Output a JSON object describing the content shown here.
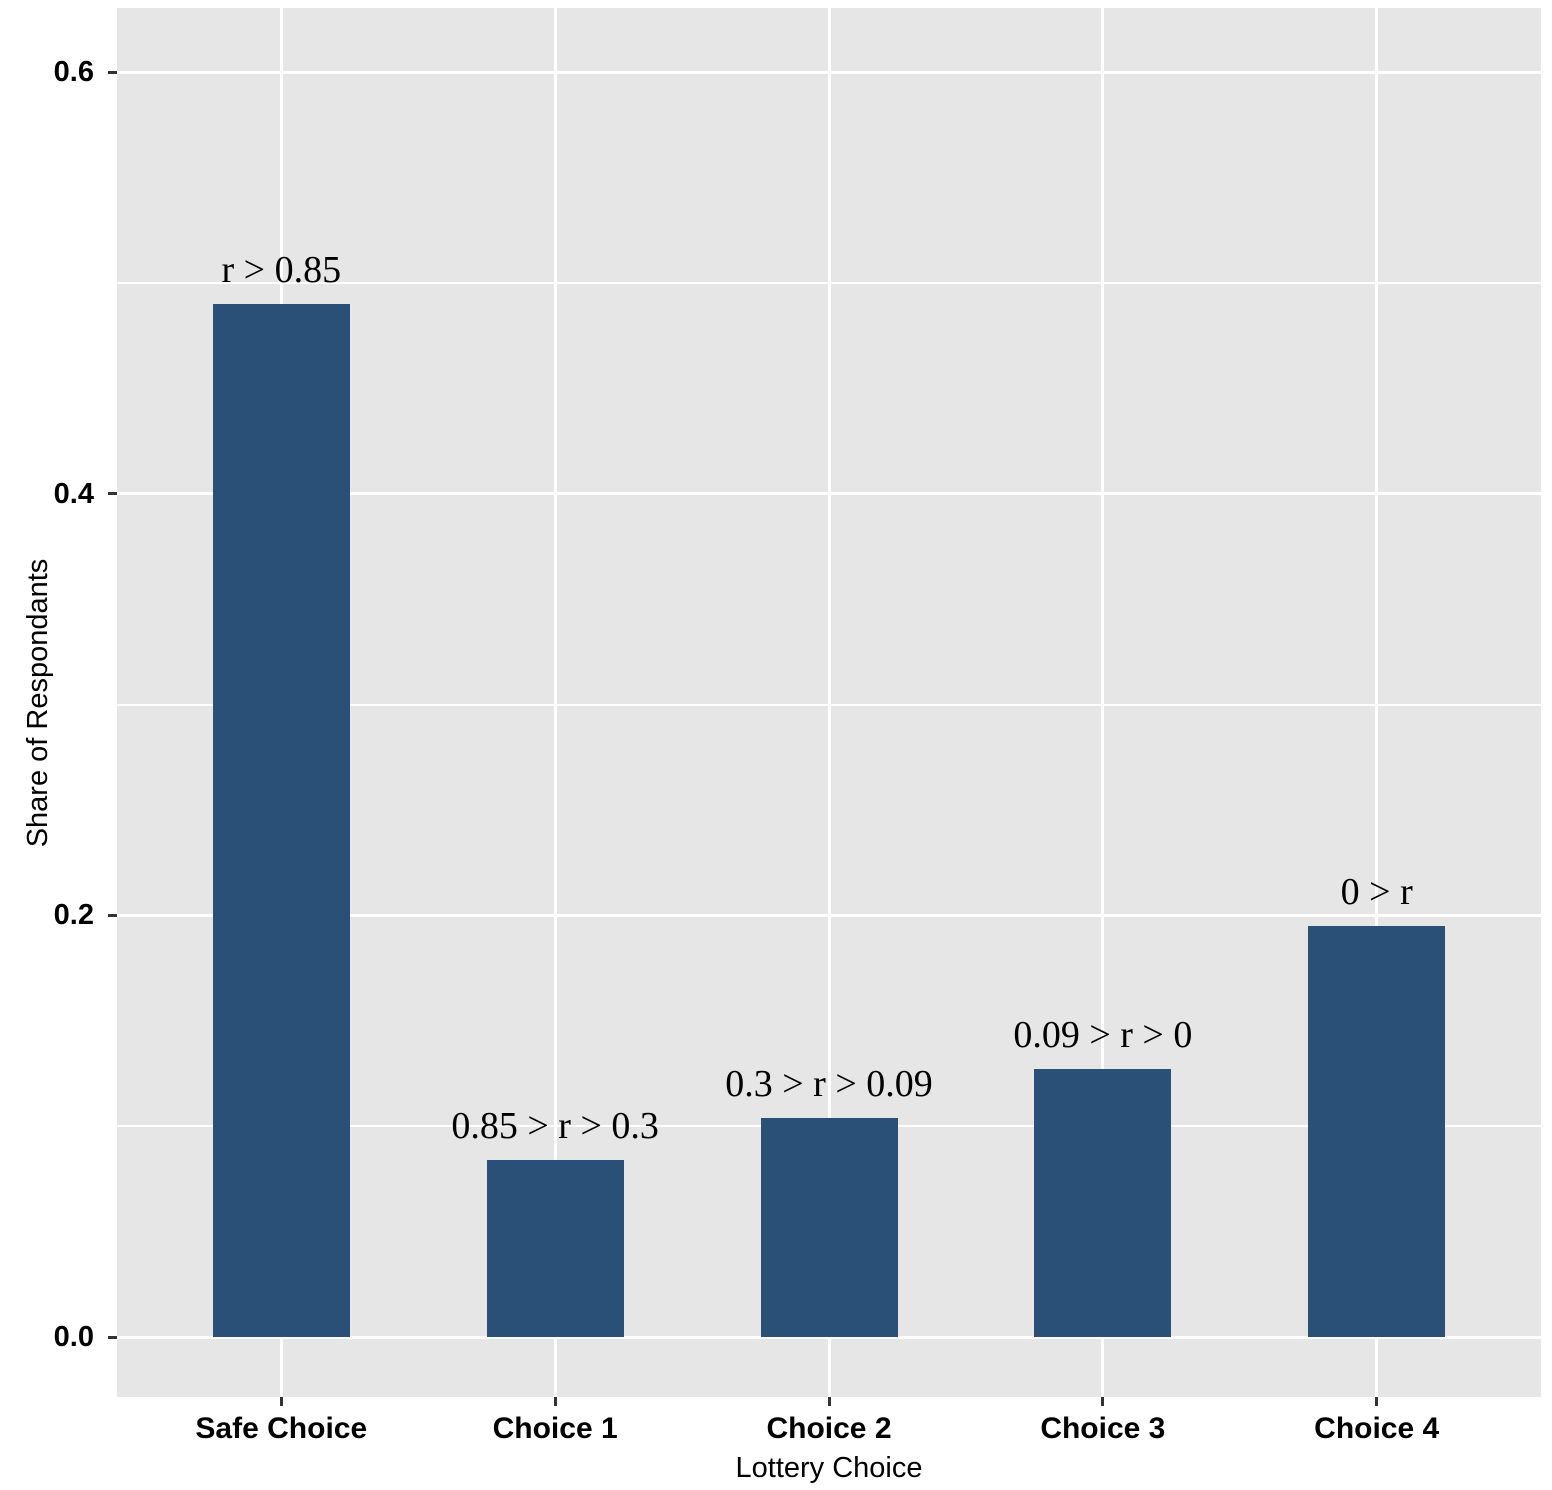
{
  "chart_data": {
    "type": "bar",
    "title": "",
    "xlabel": "Lottery Choice",
    "ylabel": "Share of Respondants",
    "categories": [
      "Safe Choice",
      "Choice 1",
      "Choice 2",
      "Choice 3",
      "Choice 4"
    ],
    "values": [
      0.49,
      0.084,
      0.104,
      0.127,
      0.195
    ],
    "bar_labels": [
      "r > 0.85",
      "0.85 > r > 0.3",
      "0.3 > r > 0.09",
      "0.09 > r > 0",
      "0 > r"
    ],
    "y_ticks": [
      0.0,
      0.2,
      0.4,
      0.6
    ],
    "y_tick_labels": [
      "0.0",
      "0.2",
      "0.4",
      "0.6"
    ],
    "y_minor_ticks": [
      0.1,
      0.3,
      0.5
    ],
    "ylim": [
      -0.029,
      0.631
    ],
    "grid": "major-and-minor, white on grey panel",
    "legend": false,
    "colors": {
      "bar": "#2B5078",
      "panel_background": "#E6E6E6",
      "gridline": "#FFFFFF",
      "text": "#000000",
      "tick_mark": "#333333",
      "page_background": "#FFFFFF"
    }
  }
}
